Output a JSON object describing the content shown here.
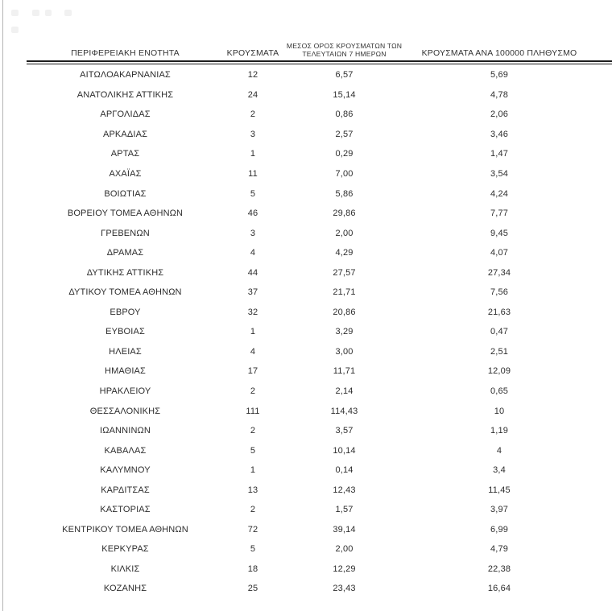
{
  "colors": {
    "text": "#2d2d2d",
    "rule": "#1c1c1c",
    "left_border": "#b5b5b5",
    "background": "#ffffff"
  },
  "table": {
    "headers": {
      "region": "ΠΕΡΙΦΕΡΕΙΑΚΗ ΕΝΟΤΗΤΑ",
      "cases": "ΚΡΟΥΣΜΑΤΑ",
      "avg7_line1": "ΜΕΣΟΣ ΟΡΟΣ ΚΡΟΥΣΜΑΤΩΝ ΤΩΝ",
      "avg7_line2": "ΤΕΛΕΥΤΑΙΩΝ 7 ΗΜΕΡΩΝ",
      "per100k": "ΚΡΟΥΣΜΑΤΑ ΑΝΑ 100000 ΠΛΗΘΥΣΜΟ"
    },
    "rows": [
      {
        "region": "ΑΙΤΩΛΟΑΚΑΡΝΑΝΙΑΣ",
        "cases": "12",
        "avg7": "6,57",
        "per100k": "5,69"
      },
      {
        "region": "ΑΝΑΤΟΛΙΚΗΣ ΑΤΤΙΚΗΣ",
        "cases": "24",
        "avg7": "15,14",
        "per100k": "4,78"
      },
      {
        "region": "ΑΡΓΟΛΙΔΑΣ",
        "cases": "2",
        "avg7": "0,86",
        "per100k": "2,06"
      },
      {
        "region": "ΑΡΚΑΔΙΑΣ",
        "cases": "3",
        "avg7": "2,57",
        "per100k": "3,46"
      },
      {
        "region": "ΑΡΤΑΣ",
        "cases": "1",
        "avg7": "0,29",
        "per100k": "1,47"
      },
      {
        "region": "ΑΧΑΪΑΣ",
        "cases": "11",
        "avg7": "7,00",
        "per100k": "3,54"
      },
      {
        "region": "ΒΟΙΩΤΙΑΣ",
        "cases": "5",
        "avg7": "5,86",
        "per100k": "4,24"
      },
      {
        "region": "ΒΟΡΕΙΟΥ ΤΟΜΕΑ ΑΘΗΝΩΝ",
        "cases": "46",
        "avg7": "29,86",
        "per100k": "7,77"
      },
      {
        "region": "ΓΡΕΒΕΝΩΝ",
        "cases": "3",
        "avg7": "2,00",
        "per100k": "9,45"
      },
      {
        "region": "ΔΡΑΜΑΣ",
        "cases": "4",
        "avg7": "4,29",
        "per100k": "4,07"
      },
      {
        "region": "ΔΥΤΙΚΗΣ ΑΤΤΙΚΗΣ",
        "cases": "44",
        "avg7": "27,57",
        "per100k": "27,34"
      },
      {
        "region": "ΔΥΤΙΚΟΥ ΤΟΜΕΑ ΑΘΗΝΩΝ",
        "cases": "37",
        "avg7": "21,71",
        "per100k": "7,56"
      },
      {
        "region": "ΕΒΡΟΥ",
        "cases": "32",
        "avg7": "20,86",
        "per100k": "21,63"
      },
      {
        "region": "ΕΥΒΟΙΑΣ",
        "cases": "1",
        "avg7": "3,29",
        "per100k": "0,47"
      },
      {
        "region": "ΗΛΕΙΑΣ",
        "cases": "4",
        "avg7": "3,00",
        "per100k": "2,51"
      },
      {
        "region": "ΗΜΑΘΙΑΣ",
        "cases": "17",
        "avg7": "11,71",
        "per100k": "12,09"
      },
      {
        "region": "ΗΡΑΚΛΕΙΟΥ",
        "cases": "2",
        "avg7": "2,14",
        "per100k": "0,65"
      },
      {
        "region": "ΘΕΣΣΑΛΟΝΙΚΗΣ",
        "cases": "111",
        "avg7": "114,43",
        "per100k": "10"
      },
      {
        "region": "ΙΩΑΝΝΙΝΩΝ",
        "cases": "2",
        "avg7": "3,57",
        "per100k": "1,19"
      },
      {
        "region": "ΚΑΒΑΛΑΣ",
        "cases": "5",
        "avg7": "10,14",
        "per100k": "4"
      },
      {
        "region": "ΚΑΛΥΜΝΟΥ",
        "cases": "1",
        "avg7": "0,14",
        "per100k": "3,4"
      },
      {
        "region": "ΚΑΡΔΙΤΣΑΣ",
        "cases": "13",
        "avg7": "12,43",
        "per100k": "11,45"
      },
      {
        "region": "ΚΑΣΤΟΡΙΑΣ",
        "cases": "2",
        "avg7": "1,57",
        "per100k": "3,97"
      },
      {
        "region": "ΚΕΝΤΡΙΚΟΥ ΤΟΜΕΑ ΑΘΗΝΩΝ",
        "cases": "72",
        "avg7": "39,14",
        "per100k": "6,99"
      },
      {
        "region": "ΚΕΡΚΥΡΑΣ",
        "cases": "5",
        "avg7": "2,00",
        "per100k": "4,79"
      },
      {
        "region": "ΚΙΛΚΙΣ",
        "cases": "18",
        "avg7": "12,29",
        "per100k": "22,38"
      },
      {
        "region": "ΚΟΖΑΝΗΣ",
        "cases": "25",
        "avg7": "23,43",
        "per100k": "16,64"
      }
    ]
  }
}
